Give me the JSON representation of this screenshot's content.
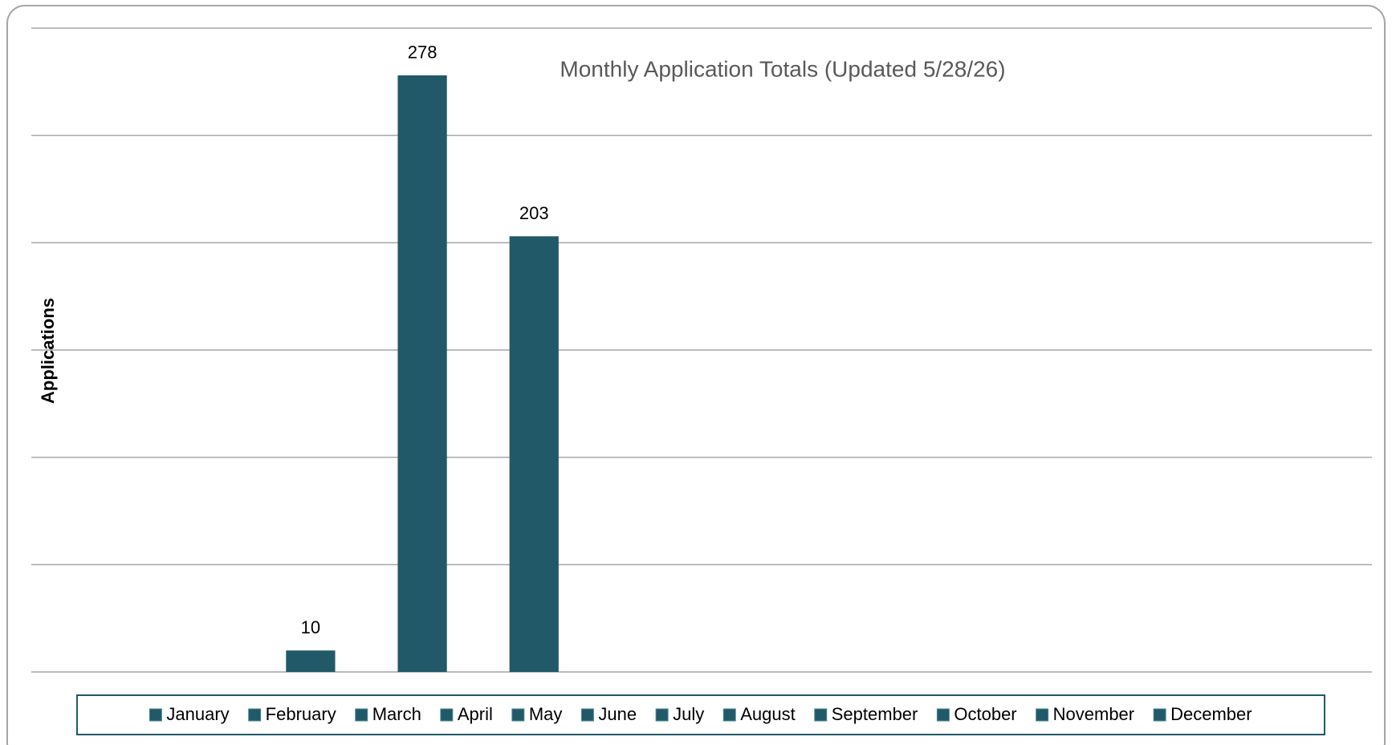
{
  "chart_data": {
    "type": "bar",
    "title": "Monthly Application Totals (Updated 5/28/26)",
    "y_label": "Applications",
    "categories": [
      "January",
      "February",
      "March",
      "April",
      "May",
      "June",
      "July",
      "August",
      "September",
      "October",
      "November",
      "December"
    ],
    "values": [
      null,
      null,
      10,
      278,
      203,
      null,
      null,
      null,
      null,
      null,
      null,
      null
    ],
    "color": "#215968",
    "ylim": [
      0,
      300
    ],
    "yticks": [
      0,
      50,
      100,
      150,
      200,
      250,
      300
    ],
    "grid": true,
    "legend": "bottom"
  }
}
